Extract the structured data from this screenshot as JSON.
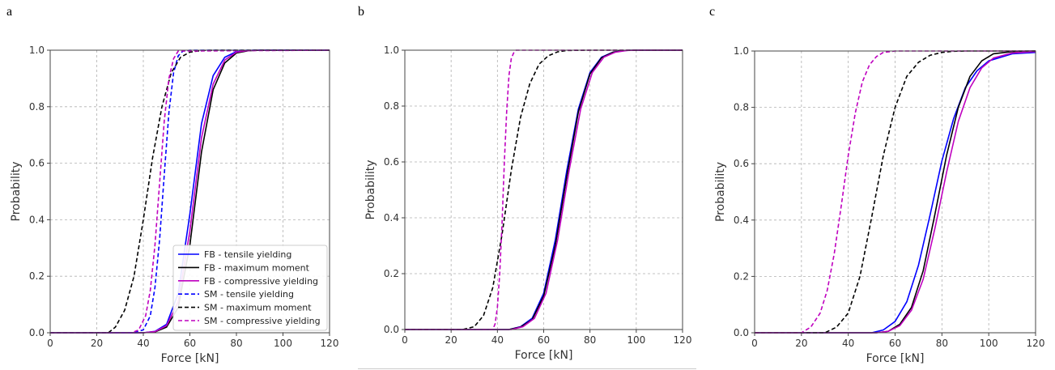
{
  "panels": [
    {
      "letter": "a"
    },
    {
      "letter": "b"
    },
    {
      "letter": "c"
    }
  ],
  "legend": {
    "entries": [
      {
        "label": "FB - tensile yielding",
        "color": "#0000ff",
        "dash": "solid"
      },
      {
        "label": "FB - maximum moment",
        "color": "#000000",
        "dash": "solid"
      },
      {
        "label": "FB - compressive yielding",
        "color": "#bf00bf",
        "dash": "solid"
      },
      {
        "label": "SM - tensile yielding",
        "color": "#0000ff",
        "dash": "dashed"
      },
      {
        "label": "SM - maximum moment",
        "color": "#000000",
        "dash": "dashed"
      },
      {
        "label": "SM - compressive yielding",
        "color": "#bf00bf",
        "dash": "dashed"
      }
    ]
  },
  "chart_data": [
    {
      "type": "line",
      "panel": "a",
      "xlabel": "Force [kN]",
      "ylabel": "Probability",
      "xlim": [
        0,
        120
      ],
      "ylim": [
        0,
        1
      ],
      "xticks": [
        "0",
        "20",
        "40",
        "60",
        "80",
        "100",
        "120"
      ],
      "yticks": [
        "0.0",
        "0.2",
        "0.4",
        "0.6",
        "0.8",
        "1.0"
      ],
      "grid": true,
      "legend_position": "lower-right",
      "series": [
        {
          "name": "FB - tensile yielding",
          "color": "#0000ff",
          "dash": "solid",
          "x": [
            0,
            40,
            45,
            50,
            55,
            60,
            65,
            70,
            75,
            80,
            85,
            90,
            100,
            120
          ],
          "y": [
            0,
            0,
            0.005,
            0.03,
            0.14,
            0.42,
            0.74,
            0.91,
            0.975,
            0.995,
            0.999,
            1,
            1,
            1
          ]
        },
        {
          "name": "FB - maximum moment",
          "color": "#000000",
          "dash": "solid",
          "x": [
            0,
            40,
            45,
            50,
            55,
            60,
            65,
            70,
            75,
            80,
            85,
            90,
            95,
            100,
            120
          ],
          "y": [
            0,
            0,
            0.003,
            0.02,
            0.09,
            0.31,
            0.64,
            0.86,
            0.955,
            0.99,
            0.998,
            1,
            1,
            1,
            1
          ]
        },
        {
          "name": "FB - compressive yielding",
          "color": "#bf00bf",
          "dash": "solid",
          "x": [
            0,
            40,
            45,
            50,
            55,
            60,
            65,
            70,
            75,
            80,
            85,
            90,
            100,
            120
          ],
          "y": [
            0,
            0,
            0.004,
            0.025,
            0.11,
            0.36,
            0.69,
            0.88,
            0.965,
            0.993,
            0.999,
            1,
            1,
            1
          ]
        },
        {
          "name": "SM - tensile yielding",
          "color": "#0000ff",
          "dash": "dashed",
          "x": [
            0,
            35,
            40,
            43,
            45,
            47,
            49,
            51,
            53,
            55,
            57,
            60,
            120
          ],
          "y": [
            0,
            0,
            0.01,
            0.06,
            0.16,
            0.33,
            0.56,
            0.78,
            0.92,
            0.98,
            0.997,
            1,
            1
          ]
        },
        {
          "name": "SM - maximum moment",
          "color": "#000000",
          "dash": "dashed",
          "x": [
            0,
            25,
            28,
            32,
            36,
            40,
            44,
            48,
            52,
            56,
            60,
            65,
            70,
            120
          ],
          "y": [
            0,
            0,
            0.02,
            0.08,
            0.2,
            0.4,
            0.62,
            0.8,
            0.92,
            0.975,
            0.993,
            0.999,
            1,
            1
          ]
        },
        {
          "name": "SM - compressive yielding",
          "color": "#bf00bf",
          "dash": "dashed",
          "x": [
            0,
            35,
            38,
            41,
            43,
            45,
            47,
            49,
            51,
            53,
            55,
            120
          ],
          "y": [
            0,
            0,
            0.01,
            0.06,
            0.15,
            0.31,
            0.53,
            0.75,
            0.9,
            0.97,
            0.997,
            1
          ]
        }
      ]
    },
    {
      "type": "line",
      "panel": "b",
      "xlabel": "Force [kN]",
      "ylabel": "Probability",
      "xlim": [
        0,
        120
      ],
      "ylim": [
        0,
        1
      ],
      "xticks": [
        "0",
        "20",
        "40",
        "60",
        "80",
        "100",
        "120"
      ],
      "yticks": [
        "0.0",
        "0.2",
        "0.4",
        "0.6",
        "0.8",
        "1.0"
      ],
      "grid": true,
      "series": [
        {
          "color": "#0000ff",
          "dash": "solid",
          "x": [
            0,
            45,
            50,
            55,
            60,
            65,
            70,
            75,
            80,
            85,
            90,
            95,
            100,
            110,
            120
          ],
          "y": [
            0,
            0,
            0.01,
            0.04,
            0.13,
            0.32,
            0.57,
            0.79,
            0.92,
            0.975,
            0.993,
            0.999,
            1,
            1,
            1
          ]
        },
        {
          "color": "#000000",
          "dash": "solid",
          "x": [
            0,
            45,
            50,
            55,
            60,
            65,
            70,
            75,
            80,
            85,
            90,
            95,
            100,
            110,
            120
          ],
          "y": [
            0,
            0,
            0.009,
            0.035,
            0.12,
            0.3,
            0.55,
            0.78,
            0.915,
            0.973,
            0.993,
            0.999,
            1,
            1,
            1
          ]
        },
        {
          "color": "#bf00bf",
          "dash": "solid",
          "x": [
            0,
            46,
            51,
            56,
            61,
            66,
            71,
            76,
            81,
            86,
            91,
            96,
            101,
            110,
            120
          ],
          "y": [
            0,
            0,
            0.01,
            0.04,
            0.13,
            0.32,
            0.57,
            0.79,
            0.92,
            0.975,
            0.993,
            0.999,
            1,
            1,
            1
          ]
        },
        {
          "color": "#000000",
          "dash": "dashed",
          "x": [
            0,
            25,
            30,
            34,
            38,
            42,
            46,
            50,
            54,
            58,
            62,
            66,
            70,
            80,
            120
          ],
          "y": [
            0,
            0,
            0.01,
            0.05,
            0.15,
            0.34,
            0.57,
            0.76,
            0.88,
            0.95,
            0.98,
            0.994,
            0.999,
            1,
            1
          ]
        },
        {
          "color": "#bf00bf",
          "dash": "dashed",
          "x": [
            0,
            38,
            39,
            40,
            41,
            42,
            43,
            44,
            45,
            46,
            47,
            48,
            120
          ],
          "y": [
            0,
            0,
            0.02,
            0.08,
            0.2,
            0.38,
            0.6,
            0.78,
            0.91,
            0.97,
            0.99,
            1,
            1
          ]
        }
      ]
    },
    {
      "type": "line",
      "panel": "c",
      "xlabel": "Force [kN]",
      "ylabel": "Probability",
      "xlim": [
        0,
        120
      ],
      "ylim": [
        0,
        1
      ],
      "xticks": [
        "0",
        "20",
        "40",
        "60",
        "80",
        "100",
        "120"
      ],
      "yticks": [
        "0.0",
        "0.2",
        "0.4",
        "0.6",
        "0.8",
        "1.0"
      ],
      "grid": true,
      "series": [
        {
          "color": "#0000ff",
          "dash": "solid",
          "x": [
            0,
            50,
            55,
            60,
            65,
            70,
            75,
            80,
            85,
            90,
            95,
            100,
            110,
            120
          ],
          "y": [
            0,
            0,
            0.01,
            0.04,
            0.11,
            0.24,
            0.42,
            0.61,
            0.76,
            0.87,
            0.93,
            0.965,
            0.99,
            0.995
          ]
        },
        {
          "color": "#000000",
          "dash": "solid",
          "x": [
            0,
            52,
            57,
            62,
            67,
            72,
            77,
            82,
            87,
            92,
            97,
            102,
            110,
            120
          ],
          "y": [
            0,
            0,
            0.005,
            0.03,
            0.09,
            0.22,
            0.42,
            0.63,
            0.8,
            0.91,
            0.965,
            0.99,
            0.998,
            1
          ]
        },
        {
          "color": "#bf00bf",
          "dash": "solid",
          "x": [
            0,
            52,
            57,
            62,
            67,
            72,
            77,
            82,
            87,
            92,
            97,
            102,
            110,
            120
          ],
          "y": [
            0,
            0,
            0.005,
            0.025,
            0.08,
            0.19,
            0.37,
            0.57,
            0.75,
            0.87,
            0.94,
            0.975,
            0.993,
            0.998
          ]
        },
        {
          "color": "#000000",
          "dash": "dashed",
          "x": [
            0,
            30,
            35,
            40,
            45,
            50,
            55,
            60,
            65,
            70,
            75,
            80,
            85,
            90,
            120
          ],
          "y": [
            0,
            0,
            0.02,
            0.07,
            0.2,
            0.41,
            0.63,
            0.8,
            0.91,
            0.96,
            0.985,
            0.995,
            0.999,
            1,
            1
          ]
        },
        {
          "color": "#bf00bf",
          "dash": "dashed",
          "x": [
            0,
            20,
            24,
            28,
            31,
            34,
            37,
            40,
            43,
            46,
            49,
            52,
            55,
            60,
            120
          ],
          "y": [
            0,
            0,
            0.02,
            0.07,
            0.15,
            0.28,
            0.45,
            0.63,
            0.78,
            0.89,
            0.95,
            0.98,
            0.995,
            1,
            1
          ]
        }
      ]
    }
  ]
}
